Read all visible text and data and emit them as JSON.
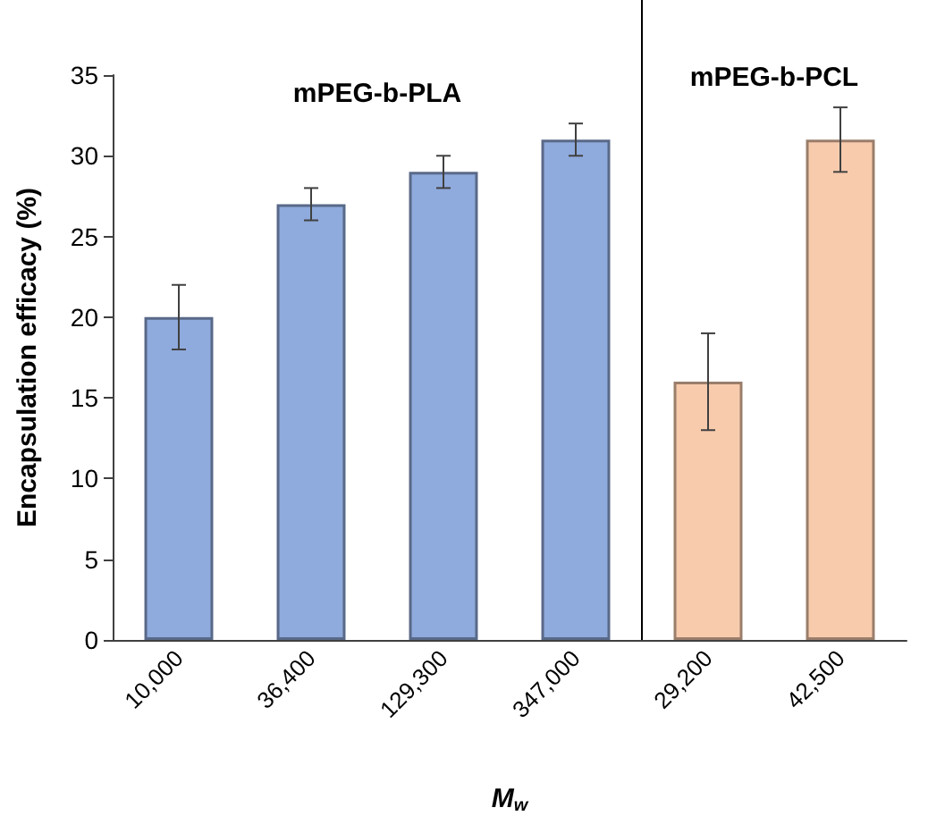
{
  "chart_data": {
    "type": "bar",
    "ylabel": "Encapsulation efficacy (%)",
    "xlabel": "M$_{w}$",
    "categories": [
      "10,000",
      "36,400",
      "129,300",
      "347,000",
      "29,200",
      "42,500"
    ],
    "series": [
      {
        "name": "mPEG-b-PLA",
        "color": "#8faadc",
        "values": [
          20,
          27,
          29,
          31,
          null,
          null
        ],
        "errors": [
          2,
          1,
          1,
          1,
          null,
          null
        ]
      },
      {
        "name": "mPEG-b-PCL",
        "color": "#f8cbad",
        "values": [
          null,
          null,
          null,
          null,
          16,
          31
        ],
        "errors": [
          null,
          null,
          null,
          null,
          3,
          2
        ]
      }
    ],
    "ylim": [
      0,
      35
    ],
    "yticks": [
      0,
      5,
      10,
      15,
      20,
      25,
      30,
      35
    ],
    "grid": false,
    "legend": false
  }
}
